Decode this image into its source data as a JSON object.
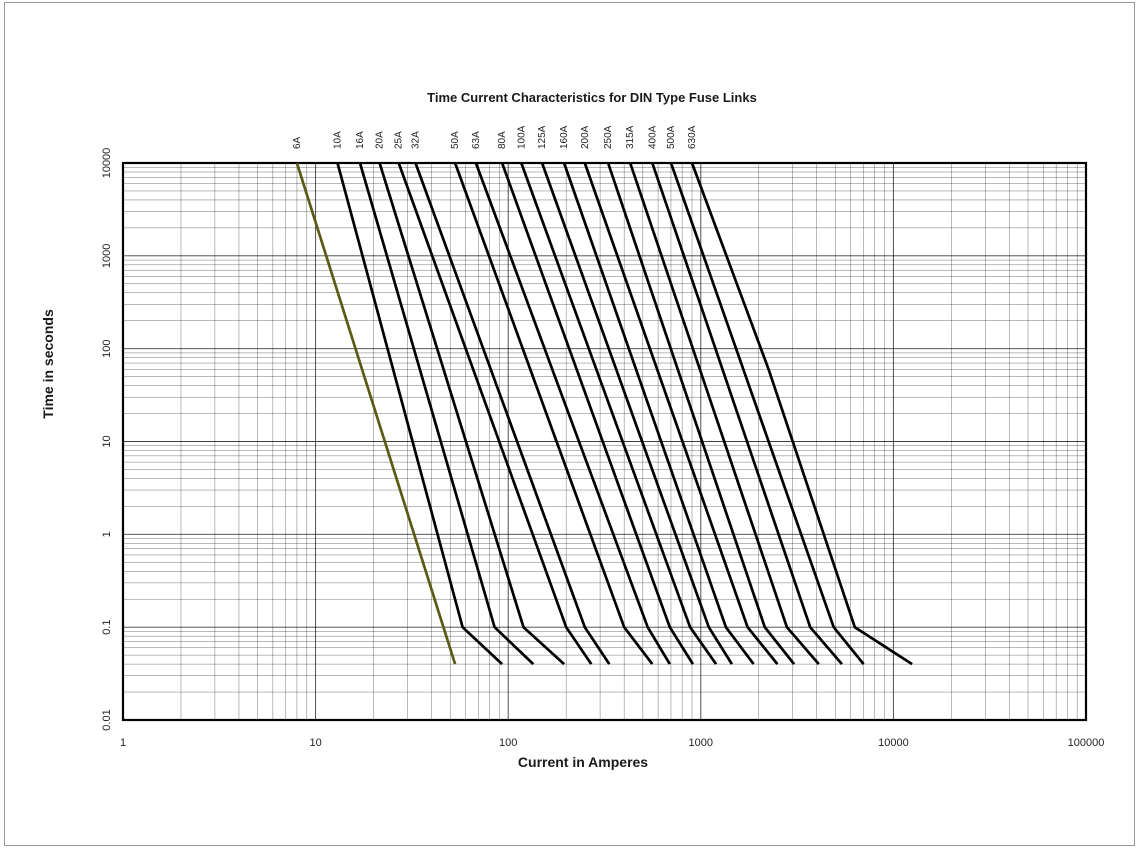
{
  "chart_data": {
    "type": "line",
    "title": "Time Current Characteristics for DIN Type  Fuse Links",
    "xlabel": "Current  in Amperes",
    "ylabel": "Time in seconds",
    "x_scale": "log",
    "y_scale": "log",
    "xlim": [
      1,
      100000
    ],
    "ylim": [
      0.01,
      10000
    ],
    "x_ticks": [
      "1",
      "10",
      "100",
      "1000",
      "10000",
      "100000"
    ],
    "y_ticks": [
      "0.01",
      "0.1",
      "1",
      "10",
      "100",
      "1000",
      "10000"
    ],
    "grid": true,
    "colors": {
      "highlight": "#5a5a14",
      "curve": "#000000",
      "grid": "#000000",
      "frame": "#000000"
    },
    "series": [
      {
        "name": "6A",
        "points": [
          [
            8,
            10000
          ],
          [
            53,
            0.04
          ]
        ]
      },
      {
        "name": "10A",
        "points": [
          [
            13,
            10000
          ],
          [
            58,
            0.1
          ],
          [
            93,
            0.04
          ]
        ]
      },
      {
        "name": "16A",
        "points": [
          [
            17,
            10000
          ],
          [
            85,
            0.1
          ],
          [
            135,
            0.04
          ]
        ]
      },
      {
        "name": "20A",
        "points": [
          [
            21.5,
            10000
          ],
          [
            120,
            0.1
          ],
          [
            195,
            0.04
          ]
        ]
      },
      {
        "name": "25A",
        "points": [
          [
            27,
            10000
          ],
          [
            200,
            0.1
          ],
          [
            270,
            0.04
          ]
        ]
      },
      {
        "name": "32A",
        "points": [
          [
            33,
            10000
          ],
          [
            250,
            0.1
          ],
          [
            335,
            0.04
          ]
        ]
      },
      {
        "name": "50A",
        "points": [
          [
            53,
            10000
          ],
          [
            400,
            0.1
          ],
          [
            560,
            0.04
          ]
        ]
      },
      {
        "name": "63A",
        "points": [
          [
            68,
            10000
          ],
          [
            530,
            0.1
          ],
          [
            690,
            0.04
          ]
        ]
      },
      {
        "name": "80A",
        "points": [
          [
            93,
            10000
          ],
          [
            690,
            0.1
          ],
          [
            910,
            0.04
          ]
        ]
      },
      {
        "name": "100A",
        "points": [
          [
            117,
            10000
          ],
          [
            880,
            0.1
          ],
          [
            1200,
            0.04
          ]
        ]
      },
      {
        "name": "125A",
        "points": [
          [
            150,
            10000
          ],
          [
            1100,
            0.1
          ],
          [
            1450,
            0.04
          ]
        ]
      },
      {
        "name": "160A",
        "points": [
          [
            195,
            10000
          ],
          [
            1350,
            0.1
          ],
          [
            1880,
            0.04
          ]
        ]
      },
      {
        "name": "200A",
        "points": [
          [
            250,
            10000
          ],
          [
            1750,
            0.1
          ],
          [
            2500,
            0.04
          ]
        ]
      },
      {
        "name": "250A",
        "points": [
          [
            330,
            10000
          ],
          [
            2150,
            0.1
          ],
          [
            3050,
            0.04
          ]
        ]
      },
      {
        "name": "315A",
        "points": [
          [
            430,
            10000
          ],
          [
            2800,
            0.1
          ],
          [
            4100,
            0.04
          ]
        ]
      },
      {
        "name": "400A",
        "points": [
          [
            560,
            10000
          ],
          [
            3700,
            0.1
          ],
          [
            5400,
            0.04
          ]
        ]
      },
      {
        "name": "500A",
        "points": [
          [
            700,
            10000
          ],
          [
            4900,
            0.1
          ],
          [
            7000,
            0.04
          ]
        ]
      },
      {
        "name": "630A",
        "points": [
          [
            900,
            10000
          ],
          [
            2250,
            60
          ],
          [
            6300,
            0.1
          ],
          [
            12500,
            0.04
          ]
        ]
      }
    ]
  }
}
